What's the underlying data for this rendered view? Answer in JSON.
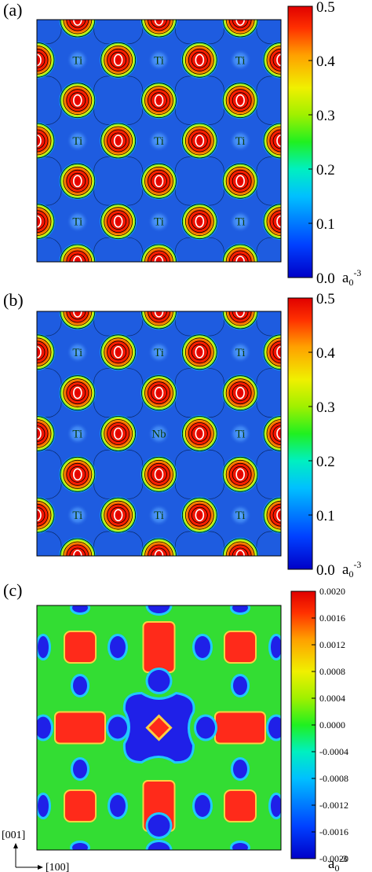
{
  "chart_data": [
    {
      "type": "heatmap",
      "panel_label": "(a)",
      "colorbar": {
        "min": 0.0,
        "max": 0.5,
        "ticks": [
          "0.5",
          "0.4",
          "0.3",
          "0.2",
          "0.1",
          "0.0"
        ],
        "unit": "a0-3",
        "unit_base": "a",
        "unit_sub": "0",
        "unit_sup": "-3"
      },
      "atom_rows": [
        {
          "y": 1,
          "labels": [
            "Ti",
            "Ti",
            "Ti"
          ],
          "o_cols": [
            1,
            3,
            5
          ]
        },
        {
          "y": 3,
          "labels": [
            "Ti",
            "Ti",
            "Ti"
          ],
          "o_cols": [
            1,
            3,
            5
          ]
        },
        {
          "y": 5,
          "labels": [
            "Ti",
            "Ti",
            "Ti"
          ],
          "o_cols": [
            1,
            3,
            5
          ]
        }
      ],
      "o_label": "O"
    },
    {
      "type": "heatmap",
      "panel_label": "(b)",
      "colorbar": {
        "min": 0.0,
        "max": 0.5,
        "ticks": [
          "0.5",
          "0.4",
          "0.3",
          "0.2",
          "0.1",
          "0.0"
        ],
        "unit": "a0-3",
        "unit_base": "a",
        "unit_sub": "0",
        "unit_sup": "-3"
      },
      "atom_rows": [
        {
          "y": 1,
          "labels": [
            "Ti",
            "Ti",
            "Ti"
          ],
          "o_cols": [
            1,
            3,
            5
          ]
        },
        {
          "y": 3,
          "labels": [
            "Ti",
            "Nb",
            "Ti"
          ],
          "o_cols": [
            1,
            3,
            5
          ]
        },
        {
          "y": 5,
          "labels": [
            "Ti",
            "Ti",
            "Ti"
          ],
          "o_cols": [
            1,
            3,
            5
          ]
        }
      ],
      "o_label": "O"
    },
    {
      "type": "heatmap",
      "panel_label": "(c)",
      "colorbar": {
        "min": -0.002,
        "max": 0.002,
        "ticks": [
          "0.0020",
          "0.0016",
          "0.0012",
          "0.0008",
          "0.0004",
          "0.0000",
          "-0.0004",
          "-0.0008",
          "-0.0012",
          "-0.0016",
          "-0.0020"
        ],
        "unit": "a0-3",
        "unit_base": "a",
        "unit_sub": "0",
        "unit_sup": "-3"
      }
    }
  ],
  "axes": {
    "vertical": "[001]",
    "horizontal": "[100]"
  },
  "colors": {
    "jet_low": "#0000ff",
    "jet_mid": "#00ff00",
    "jet_high": "#ff0000",
    "background_ab": "#1e5ce0",
    "background_c": "#33dd33"
  }
}
